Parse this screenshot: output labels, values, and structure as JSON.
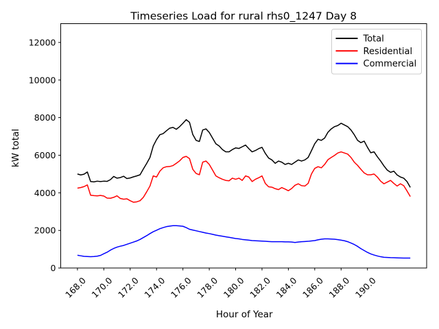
{
  "figure": {
    "background": "#ffffff"
  },
  "chart_data": {
    "type": "line",
    "title": "Timeseries Load for rural rhs0_1247  Day 8",
    "xlabel": "Hour of Year",
    "ylabel": "kW total",
    "xlim": [
      166.73,
      194.49
    ],
    "ylim": [
      0,
      13000
    ],
    "grid": false,
    "x_start": 168.0,
    "x_step": 0.25,
    "x_ticks": [
      168,
      170,
      172,
      174,
      176,
      178,
      180,
      182,
      184,
      186,
      188,
      190
    ],
    "x_tick_labels": [
      "168.0",
      "170.0",
      "172.0",
      "174.0",
      "176.0",
      "178.0",
      "180.0",
      "182.0",
      "184.0",
      "186.0",
      "188.0",
      "190.0"
    ],
    "y_ticks": [
      0,
      2000,
      4000,
      6000,
      8000,
      10000,
      12000
    ],
    "y_tick_labels": [
      "0",
      "2000",
      "4000",
      "6000",
      "8000",
      "10000",
      "12000"
    ],
    "legend": {
      "position": "upper right",
      "entries": [
        "Total",
        "Residential",
        "Commercial"
      ]
    },
    "series": [
      {
        "name": "Total",
        "color": "#000000",
        "values": [
          5000,
          4950,
          4990,
          5110,
          4600,
          4580,
          4620,
          4600,
          4620,
          4610,
          4700,
          4870,
          4780,
          4810,
          4880,
          4760,
          4790,
          4850,
          4900,
          4960,
          5270,
          5560,
          5880,
          6490,
          6830,
          7090,
          7150,
          7300,
          7440,
          7480,
          7380,
          7520,
          7700,
          7890,
          7750,
          7100,
          6790,
          6730,
          7340,
          7400,
          7210,
          6910,
          6610,
          6490,
          6300,
          6180,
          6180,
          6300,
          6390,
          6360,
          6450,
          6540,
          6350,
          6180,
          6250,
          6350,
          6420,
          6100,
          5850,
          5750,
          5570,
          5690,
          5630,
          5510,
          5570,
          5510,
          5630,
          5750,
          5690,
          5750,
          5880,
          6240,
          6610,
          6850,
          6790,
          6910,
          7220,
          7400,
          7520,
          7580,
          7700,
          7610,
          7520,
          7340,
          7090,
          6790,
          6670,
          6750,
          6420,
          6130,
          6180,
          5920,
          5690,
          5430,
          5210,
          5090,
          5150,
          4950,
          4840,
          4780,
          4600,
          4290
        ]
      },
      {
        "name": "Residential",
        "color": "#ff0000",
        "values": [
          4250,
          4280,
          4330,
          4420,
          3870,
          3850,
          3840,
          3860,
          3830,
          3720,
          3710,
          3760,
          3840,
          3700,
          3660,
          3680,
          3580,
          3500,
          3520,
          3580,
          3760,
          4050,
          4360,
          4900,
          4840,
          5150,
          5330,
          5390,
          5400,
          5450,
          5570,
          5700,
          5880,
          5940,
          5820,
          5250,
          5030,
          4960,
          5630,
          5690,
          5510,
          5210,
          4900,
          4800,
          4720,
          4660,
          4640,
          4780,
          4720,
          4780,
          4660,
          4900,
          4840,
          4600,
          4720,
          4800,
          4900,
          4500,
          4320,
          4300,
          4220,
          4170,
          4280,
          4200,
          4110,
          4230,
          4400,
          4480,
          4380,
          4360,
          4500,
          5000,
          5300,
          5390,
          5330,
          5510,
          5760,
          5880,
          5990,
          6120,
          6180,
          6120,
          6060,
          5880,
          5630,
          5460,
          5250,
          5060,
          4960,
          4960,
          5000,
          4840,
          4620,
          4480,
          4570,
          4660,
          4500,
          4360,
          4480,
          4380,
          4100,
          3800
        ]
      },
      {
        "name": "Commercial",
        "color": "#0000ff",
        "values": [
          680,
          650,
          620,
          610,
          600,
          610,
          630,
          670,
          760,
          840,
          950,
          1040,
          1110,
          1160,
          1200,
          1260,
          1320,
          1380,
          1440,
          1520,
          1620,
          1720,
          1830,
          1930,
          2010,
          2090,
          2150,
          2200,
          2230,
          2250,
          2250,
          2240,
          2220,
          2150,
          2060,
          2020,
          1980,
          1940,
          1900,
          1860,
          1830,
          1790,
          1750,
          1720,
          1690,
          1660,
          1630,
          1600,
          1570,
          1550,
          1520,
          1500,
          1480,
          1460,
          1450,
          1440,
          1430,
          1420,
          1410,
          1400,
          1400,
          1400,
          1400,
          1390,
          1390,
          1380,
          1360,
          1380,
          1400,
          1410,
          1420,
          1440,
          1460,
          1500,
          1530,
          1550,
          1550,
          1540,
          1530,
          1510,
          1480,
          1450,
          1400,
          1330,
          1250,
          1150,
          1030,
          930,
          830,
          750,
          690,
          640,
          600,
          570,
          560,
          550,
          545,
          540,
          535,
          530,
          530,
          530
        ]
      }
    ]
  }
}
